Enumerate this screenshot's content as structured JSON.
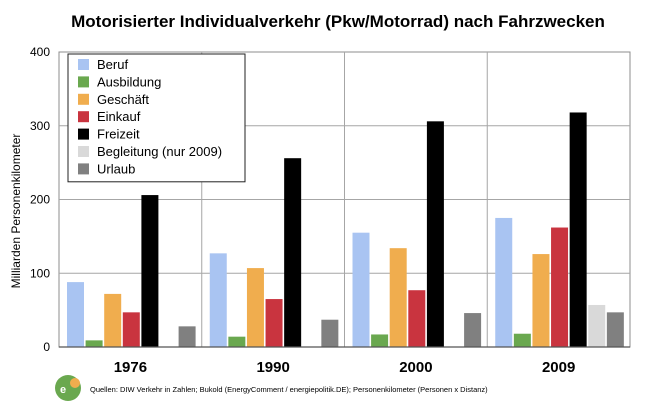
{
  "chart_data": {
    "type": "bar",
    "title": "Motorisierter Individualverkehr (Pkw/Motorrad) nach Fahrzwecken",
    "ylabel": "Milliarden Personenkilometer",
    "xlabel": "",
    "ylim": [
      0,
      400
    ],
    "yticks": [
      0,
      100,
      200,
      300,
      400
    ],
    "grid": true,
    "legend_position": "top-left",
    "categories": [
      "1976",
      "1990",
      "2000",
      "2009"
    ],
    "series": [
      {
        "name": "Beruf",
        "color": "#a9c4f2",
        "values": [
          88,
          127,
          155,
          175
        ]
      },
      {
        "name": "Ausbildung",
        "color": "#6aa84f",
        "values": [
          9,
          14,
          17,
          18
        ]
      },
      {
        "name": "Geschäft",
        "color": "#f0ad4e",
        "values": [
          72,
          107,
          134,
          126
        ]
      },
      {
        "name": "Einkauf",
        "color": "#c9343f",
        "values": [
          47,
          65,
          77,
          162
        ]
      },
      {
        "name": "Freizeit",
        "color": "#000000",
        "values": [
          206,
          256,
          306,
          318
        ]
      },
      {
        "name": "Begleitung (nur 2009)",
        "color": "#d9d9d9",
        "values": [
          null,
          null,
          null,
          57
        ]
      },
      {
        "name": "Urlaub",
        "color": "#808080",
        "values": [
          28,
          37,
          46,
          47
        ]
      }
    ]
  },
  "footer": {
    "source": "Quellen: DIW Verkehr in Zahlen; Bukold (EnergyComment / energiepolitik.DE); Personenkilometer (Personen x Distanz)"
  }
}
